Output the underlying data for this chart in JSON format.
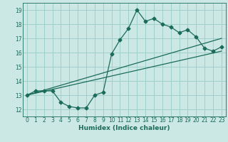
{
  "xlabel": "Humidex (Indice chaleur)",
  "bg_color": "#cce8e4",
  "grid_color": "#a0d0cc",
  "line_color": "#1a6b5a",
  "xlim": [
    -0.5,
    23.5
  ],
  "ylim": [
    11.5,
    19.5
  ],
  "xticks": [
    0,
    1,
    2,
    3,
    4,
    5,
    6,
    7,
    8,
    9,
    10,
    11,
    12,
    13,
    14,
    15,
    16,
    17,
    18,
    19,
    20,
    21,
    22,
    23
  ],
  "yticks": [
    12,
    13,
    14,
    15,
    16,
    17,
    18,
    19
  ],
  "wavy_x": [
    0,
    1,
    2,
    3,
    4,
    5,
    6,
    7,
    8,
    9,
    10,
    11,
    12,
    13,
    14,
    15,
    16,
    17,
    18,
    19,
    20,
    21,
    22,
    23
  ],
  "wavy_y": [
    13.0,
    13.3,
    13.3,
    13.3,
    12.5,
    12.2,
    12.1,
    12.1,
    13.0,
    13.2,
    15.9,
    16.9,
    17.7,
    19.0,
    18.2,
    18.4,
    18.0,
    17.8,
    17.4,
    17.6,
    17.1,
    16.3,
    16.1,
    16.4
  ],
  "line2_x": [
    0,
    23
  ],
  "line2_y": [
    13.0,
    17.0
  ],
  "line3_x": [
    0,
    23
  ],
  "line3_y": [
    13.0,
    16.1
  ]
}
